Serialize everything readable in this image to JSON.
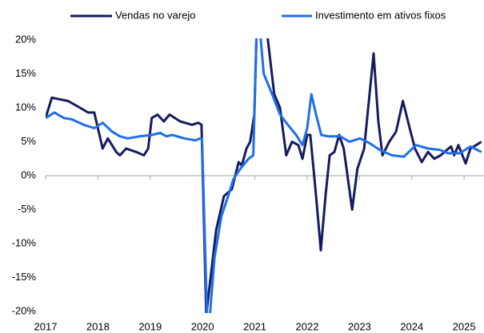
{
  "chart_data": {
    "type": "line",
    "xlim": [
      2017,
      2025.38
    ],
    "xticks": [
      2017,
      2018,
      2019,
      2020,
      2021,
      2022,
      2023,
      2024,
      2025
    ],
    "ylim": [
      -20,
      20
    ],
    "yticks": [
      {
        "value": -20,
        "label": "-20%"
      },
      {
        "value": -15,
        "label": "-15%"
      },
      {
        "value": -10,
        "label": "-10%"
      },
      {
        "value": -5,
        "label": "-5%"
      },
      {
        "value": 0,
        "label": "0%"
      },
      {
        "value": 5,
        "label": "5%"
      },
      {
        "value": 10,
        "label": "10%"
      },
      {
        "value": 15,
        "label": "15%"
      },
      {
        "value": 20,
        "label": "20%"
      }
    ],
    "series": [
      {
        "name": "Vendas no varejo",
        "color": "#161b5e",
        "x": [
          2017.0,
          2017.12,
          2017.43,
          2017.66,
          2017.81,
          2017.93,
          2018.09,
          2018.19,
          2018.35,
          2018.42,
          2018.54,
          2018.73,
          2018.88,
          2018.96,
          2019.03,
          2019.14,
          2019.26,
          2019.37,
          2019.57,
          2019.8,
          2019.92,
          2019.98,
          2020.07,
          2020.26,
          2020.41,
          2020.56,
          2020.69,
          2020.75,
          2020.84,
          2020.91,
          2020.99,
          2021.08,
          2021.25,
          2021.37,
          2021.48,
          2021.6,
          2021.71,
          2021.83,
          2021.91,
          2022.0,
          2022.06,
          2022.17,
          2022.26,
          2022.35,
          2022.43,
          2022.52,
          2022.61,
          2022.7,
          2022.86,
          2022.96,
          2023.09,
          2023.27,
          2023.36,
          2023.44,
          2023.57,
          2023.7,
          2023.83,
          2023.96,
          2024.06,
          2024.19,
          2024.31,
          2024.43,
          2024.55,
          2024.75,
          2024.81,
          2024.89,
          2025.03,
          2025.12,
          2025.23,
          2025.33
        ],
        "values": [
          8.5,
          11.5,
          11,
          10,
          9.3,
          9.3,
          4,
          5.5,
          3.5,
          3,
          4,
          3.5,
          3,
          4,
          8.5,
          9,
          8,
          9,
          8,
          7.5,
          7.8,
          7.5,
          -20.5,
          -8,
          -3,
          -2,
          2,
          1.5,
          4,
          5,
          9,
          34,
          20,
          12,
          10,
          3,
          5,
          4.5,
          2.5,
          6,
          6,
          -3,
          -11,
          -3,
          3,
          3.5,
          6,
          4,
          -5,
          1,
          4,
          18,
          8,
          3,
          5,
          6.5,
          11,
          7,
          4,
          2,
          3.5,
          2.5,
          3,
          4.3,
          3,
          4.5,
          1.8,
          4,
          4.5,
          5
        ]
      },
      {
        "name": "Investimento em ativos fixos",
        "color": "#1f6fe8",
        "x": [
          2017.0,
          2017.17,
          2017.35,
          2017.5,
          2017.73,
          2017.93,
          2018.09,
          2018.27,
          2018.42,
          2018.57,
          2018.8,
          2019.03,
          2019.19,
          2019.31,
          2019.42,
          2019.65,
          2019.87,
          2019.95,
          2019.99,
          2020.1,
          2020.23,
          2020.36,
          2020.49,
          2020.59,
          2020.72,
          2020.88,
          2020.97,
          2021.05,
          2021.17,
          2021.33,
          2021.48,
          2021.63,
          2021.79,
          2021.91,
          2022.0,
          2022.08,
          2022.17,
          2022.27,
          2022.4,
          2022.63,
          2022.81,
          2023.01,
          2023.19,
          2023.39,
          2023.62,
          2023.85,
          2024.08,
          2024.31,
          2024.54,
          2024.69,
          2024.92,
          2025.12,
          2025.33
        ],
        "values": [
          8.5,
          9.3,
          8.5,
          8.3,
          7.5,
          7,
          7.8,
          6.5,
          5.8,
          5.5,
          5.8,
          6,
          6.3,
          5.8,
          6,
          5.5,
          5.2,
          5.5,
          5.5,
          -24.5,
          -12,
          -6,
          -3,
          -0.5,
          1,
          2.5,
          3,
          25.6,
          15,
          12,
          9,
          7.5,
          6,
          4.5,
          7,
          12,
          9,
          6,
          5.8,
          5.8,
          5,
          5.5,
          4.8,
          3.8,
          3,
          2.8,
          4.5,
          4,
          3.8,
          3.3,
          3.3,
          4.3,
          3.5
        ]
      }
    ]
  }
}
